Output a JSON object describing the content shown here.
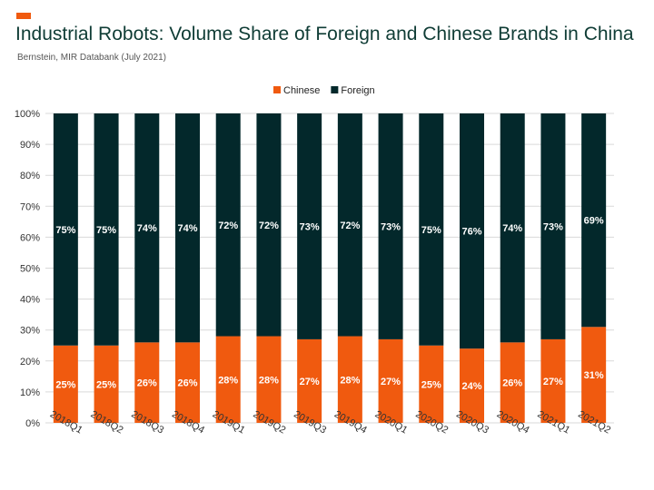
{
  "header": {
    "title": "Industrial Robots: Volume Share of Foreign and Chinese Brands in China",
    "subtitle": "Bernstein, MIR Databank (July 2021)"
  },
  "colors": {
    "accent": "#f05a0f",
    "chinese": "#f05a0f",
    "foreign": "#03282b",
    "title": "#0f3c35",
    "grid": "#d9d9d9"
  },
  "chart_data": {
    "type": "bar",
    "stacked": true,
    "title": "Industrial Robots: Volume Share of Foreign and Chinese Brands in China",
    "subtitle": "Bernstein, MIR Databank (July 2021)",
    "xlabel": "",
    "ylabel": "",
    "ylim": [
      0,
      100
    ],
    "yticks": [
      "0%",
      "10%",
      "20%",
      "30%",
      "40%",
      "50%",
      "60%",
      "70%",
      "80%",
      "90%",
      "100%"
    ],
    "grid": true,
    "legend": "top-center",
    "categories": [
      "2018Q1",
      "2018Q2",
      "2018Q3",
      "2018Q4",
      "2019Q1",
      "2019Q2",
      "2019Q3",
      "2019Q4",
      "2020Q1",
      "2020Q2",
      "2020Q3",
      "2020Q4",
      "2021Q1",
      "2021Q2"
    ],
    "series": [
      {
        "name": "Chinese",
        "color": "#f05a0f",
        "values": [
          25,
          25,
          26,
          26,
          28,
          28,
          27,
          28,
          27,
          25,
          24,
          26,
          27,
          31
        ],
        "labels": [
          "25%",
          "25%",
          "26%",
          "26%",
          "28%",
          "28%",
          "27%",
          "28%",
          "27%",
          "25%",
          "24%",
          "26%",
          "27%",
          "31%"
        ]
      },
      {
        "name": "Foreign",
        "color": "#03282b",
        "values": [
          75,
          75,
          74,
          74,
          72,
          72,
          73,
          72,
          73,
          75,
          76,
          74,
          73,
          69
        ],
        "labels": [
          "75%",
          "75%",
          "74%",
          "74%",
          "72%",
          "72%",
          "73%",
          "72%",
          "73%",
          "75%",
          "76%",
          "74%",
          "73%",
          "69%"
        ]
      }
    ]
  }
}
